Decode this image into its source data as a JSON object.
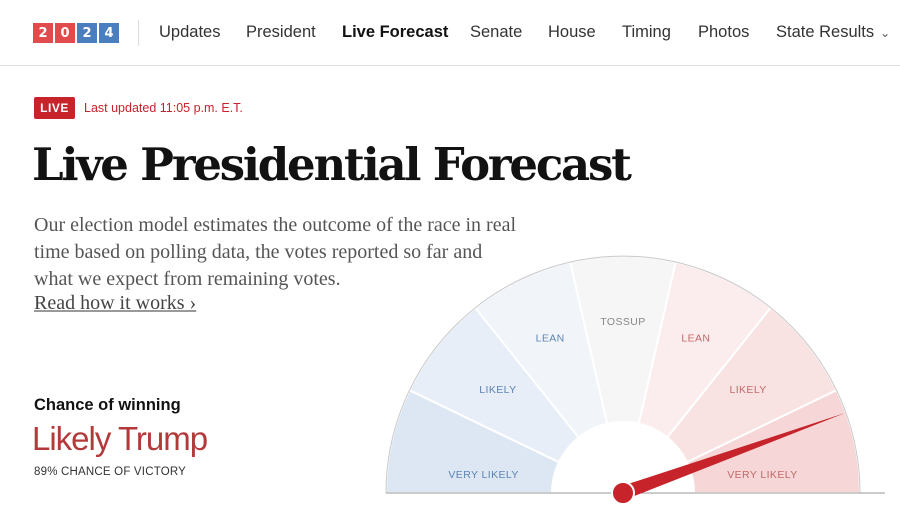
{
  "nav": {
    "logo_digits": [
      "2",
      "0",
      "2",
      "4"
    ],
    "logo_colors": [
      "#e24b4b",
      "#e24b4b",
      "#4a7ebf",
      "#4a7ebf"
    ],
    "links": [
      "Updates",
      "President",
      "Live Forecast",
      "Senate",
      "House",
      "Timing",
      "Photos",
      "State Results"
    ],
    "active_link": "Live Forecast",
    "dropdown_icon": "chevron-down-icon"
  },
  "header": {
    "live_badge": "LIVE",
    "updated": "Last updated 11:05 p.m. E.T.",
    "title": "Live Presidential Forecast",
    "description": "Our election model estimates the outcome of the race in real time based on polling data, the votes reported so far and what we expect from remaining votes.",
    "read_more": "Read how it works ›"
  },
  "forecast": {
    "chance_label": "Chance of winning",
    "status": "Likely Trump",
    "subnote": "89% CHANCE OF VICTORY",
    "needle_value": 0.89
  },
  "gauge": {
    "segments": [
      {
        "label": "VERY LIKELY",
        "color": "#dce7f3"
      },
      {
        "label": "LIKELY",
        "color": "#e7eef7"
      },
      {
        "label": "LEAN",
        "color": "#f1f5fa"
      },
      {
        "label": "TOSSUP",
        "color": "#f6f6f6"
      },
      {
        "label": "LEAN",
        "color": "#fbeded"
      },
      {
        "label": "LIKELY",
        "color": "#f9e2e2"
      },
      {
        "label": "VERY LIKELY",
        "color": "#f6d6d6"
      }
    ],
    "blue_label_color": "#5e84b3",
    "gray_label_color": "#888888",
    "red_label_color": "#c06a6a",
    "needle_color": "#c6232b"
  }
}
